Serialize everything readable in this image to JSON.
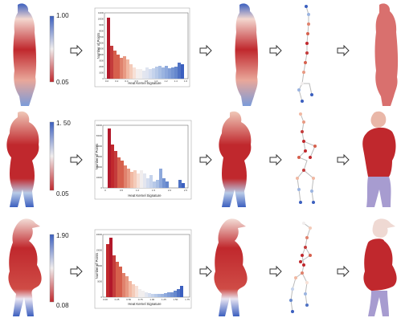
{
  "figure": {
    "rows": [
      {
        "colorbar": {
          "max_label": "1.00",
          "min_label": "0.05"
        },
        "histogram": {
          "xlabel": "Heat Kernel Signature",
          "ylabel": "Number of Points",
          "yticks": [
            "0",
            "1000",
            "2000",
            "3000",
            "4000",
            "5000",
            "6000",
            "7000",
            "8000",
            "9000",
            "10000",
            "11000"
          ],
          "xticks": [
            "0.0",
            "0.2",
            "0.4",
            "0.6",
            "0.8",
            "1.0",
            "1.2",
            "1.4",
            "1.6"
          ]
        }
      },
      {
        "colorbar": {
          "max_label": "1. 50",
          "min_label": "0.05"
        },
        "histogram": {
          "xlabel": "Heat Kernel Signature",
          "ylabel": "Number of Points",
          "yticks": [
            "0",
            "10000",
            "20000",
            "30000",
            "40000",
            "50000",
            "60000"
          ],
          "xticks": [
            "0",
            "0.5",
            "1.0",
            "1.5",
            "2.0",
            "2.5"
          ]
        }
      },
      {
        "colorbar": {
          "max_label": "1.90",
          "min_label": "0.08"
        },
        "histogram": {
          "xlabel": "Heat Kernel Signature",
          "ylabel": "Number of Points",
          "yticks": [
            "0",
            "5000",
            "10000",
            "15000",
            "20000"
          ],
          "xticks": [
            "0.00",
            "0.25",
            "0.50",
            "0.75",
            "1.00",
            "1.25",
            "1.50",
            "1.75"
          ]
        }
      }
    ],
    "colors": {
      "red": "#c0282d",
      "blue": "#3b5fbf",
      "white": "#f1eeee",
      "pink": "#d9706e",
      "lavender": "#a79cd0"
    }
  }
}
